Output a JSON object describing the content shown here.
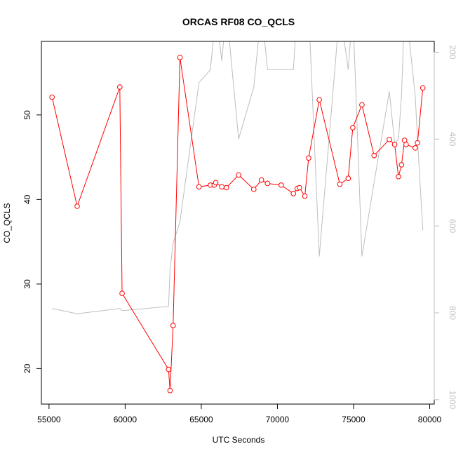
{
  "chart_data": {
    "type": "line",
    "title": "ORCAS RF08 CO_QCLS",
    "xlabel": "UTC Seconds",
    "ylabel": "CO_QCLS",
    "xlim": [
      54500,
      80300
    ],
    "ylim": [
      15.8,
      58.7
    ],
    "y2lim": [
      1010,
      175
    ],
    "y2_reversed": true,
    "grid": false,
    "legend": "none",
    "x_ticks": [
      55000,
      60000,
      65000,
      70000,
      75000,
      80000
    ],
    "x_tick_labels": [
      "55000",
      "60000",
      "65000",
      "70000",
      "75000",
      "80000"
    ],
    "y_ticks": [
      20,
      30,
      40,
      50
    ],
    "y_tick_labels": [
      "20",
      "30",
      "40",
      "50"
    ],
    "y2_ticks": [
      200,
      400,
      600,
      800,
      1000
    ],
    "y2_tick_labels": [
      "200",
      "400",
      "600",
      "800",
      "1000"
    ],
    "series": [
      {
        "color": "#ff0000",
        "style": "line-with-open-circles",
        "axis": "left",
        "x": [
          55200,
          56850,
          59650,
          59800,
          62850,
          62950,
          63150,
          63600,
          64850,
          65600,
          65850,
          65950,
          66350,
          66650,
          67450,
          68450,
          68950,
          69350,
          70250,
          71050,
          71300,
          71450,
          71800,
          72050,
          72750,
          74100,
          74650,
          74950,
          75550,
          76350,
          77350,
          77700,
          77950,
          78150,
          78350,
          78450,
          79050,
          79200,
          79550
        ],
        "y": [
          52.1,
          39.2,
          53.3,
          28.9,
          19.9,
          17.4,
          25.1,
          56.8,
          41.5,
          41.7,
          41.7,
          42.0,
          41.5,
          41.4,
          42.9,
          41.2,
          42.3,
          41.9,
          41.7,
          40.7,
          41.3,
          41.4,
          40.4,
          44.9,
          51.8,
          41.8,
          42.5,
          48.5,
          51.2,
          45.2,
          47.1,
          46.5,
          42.7,
          44.1,
          47.0,
          46.5,
          46.1,
          46.7,
          53.2
        ]
      },
      {
        "color": "#bebebe",
        "style": "line",
        "axis": "right",
        "x": [
          55200,
          56850,
          59650,
          59800,
          62850,
          62950,
          63150,
          63600,
          64850,
          65600,
          65850,
          65950,
          66350,
          66650,
          67450,
          68450,
          68950,
          69350,
          70250,
          71050,
          71300,
          71450,
          71800,
          72050,
          72750,
          74100,
          74650,
          74950,
          75550,
          76350,
          77350,
          77700,
          77950,
          78150,
          78350,
          78450,
          79050,
          79200,
          79550
        ],
        "y": [
          790,
          802,
          790,
          795,
          785,
          700,
          640,
          590,
          270,
          240,
          150,
          100,
          220,
          100,
          400,
          280,
          100,
          240,
          240,
          240,
          100,
          100,
          100,
          100,
          670,
          100,
          240,
          100,
          670,
          500,
          290,
          410,
          400,
          300,
          100,
          100,
          300,
          400,
          610
        ]
      }
    ]
  }
}
